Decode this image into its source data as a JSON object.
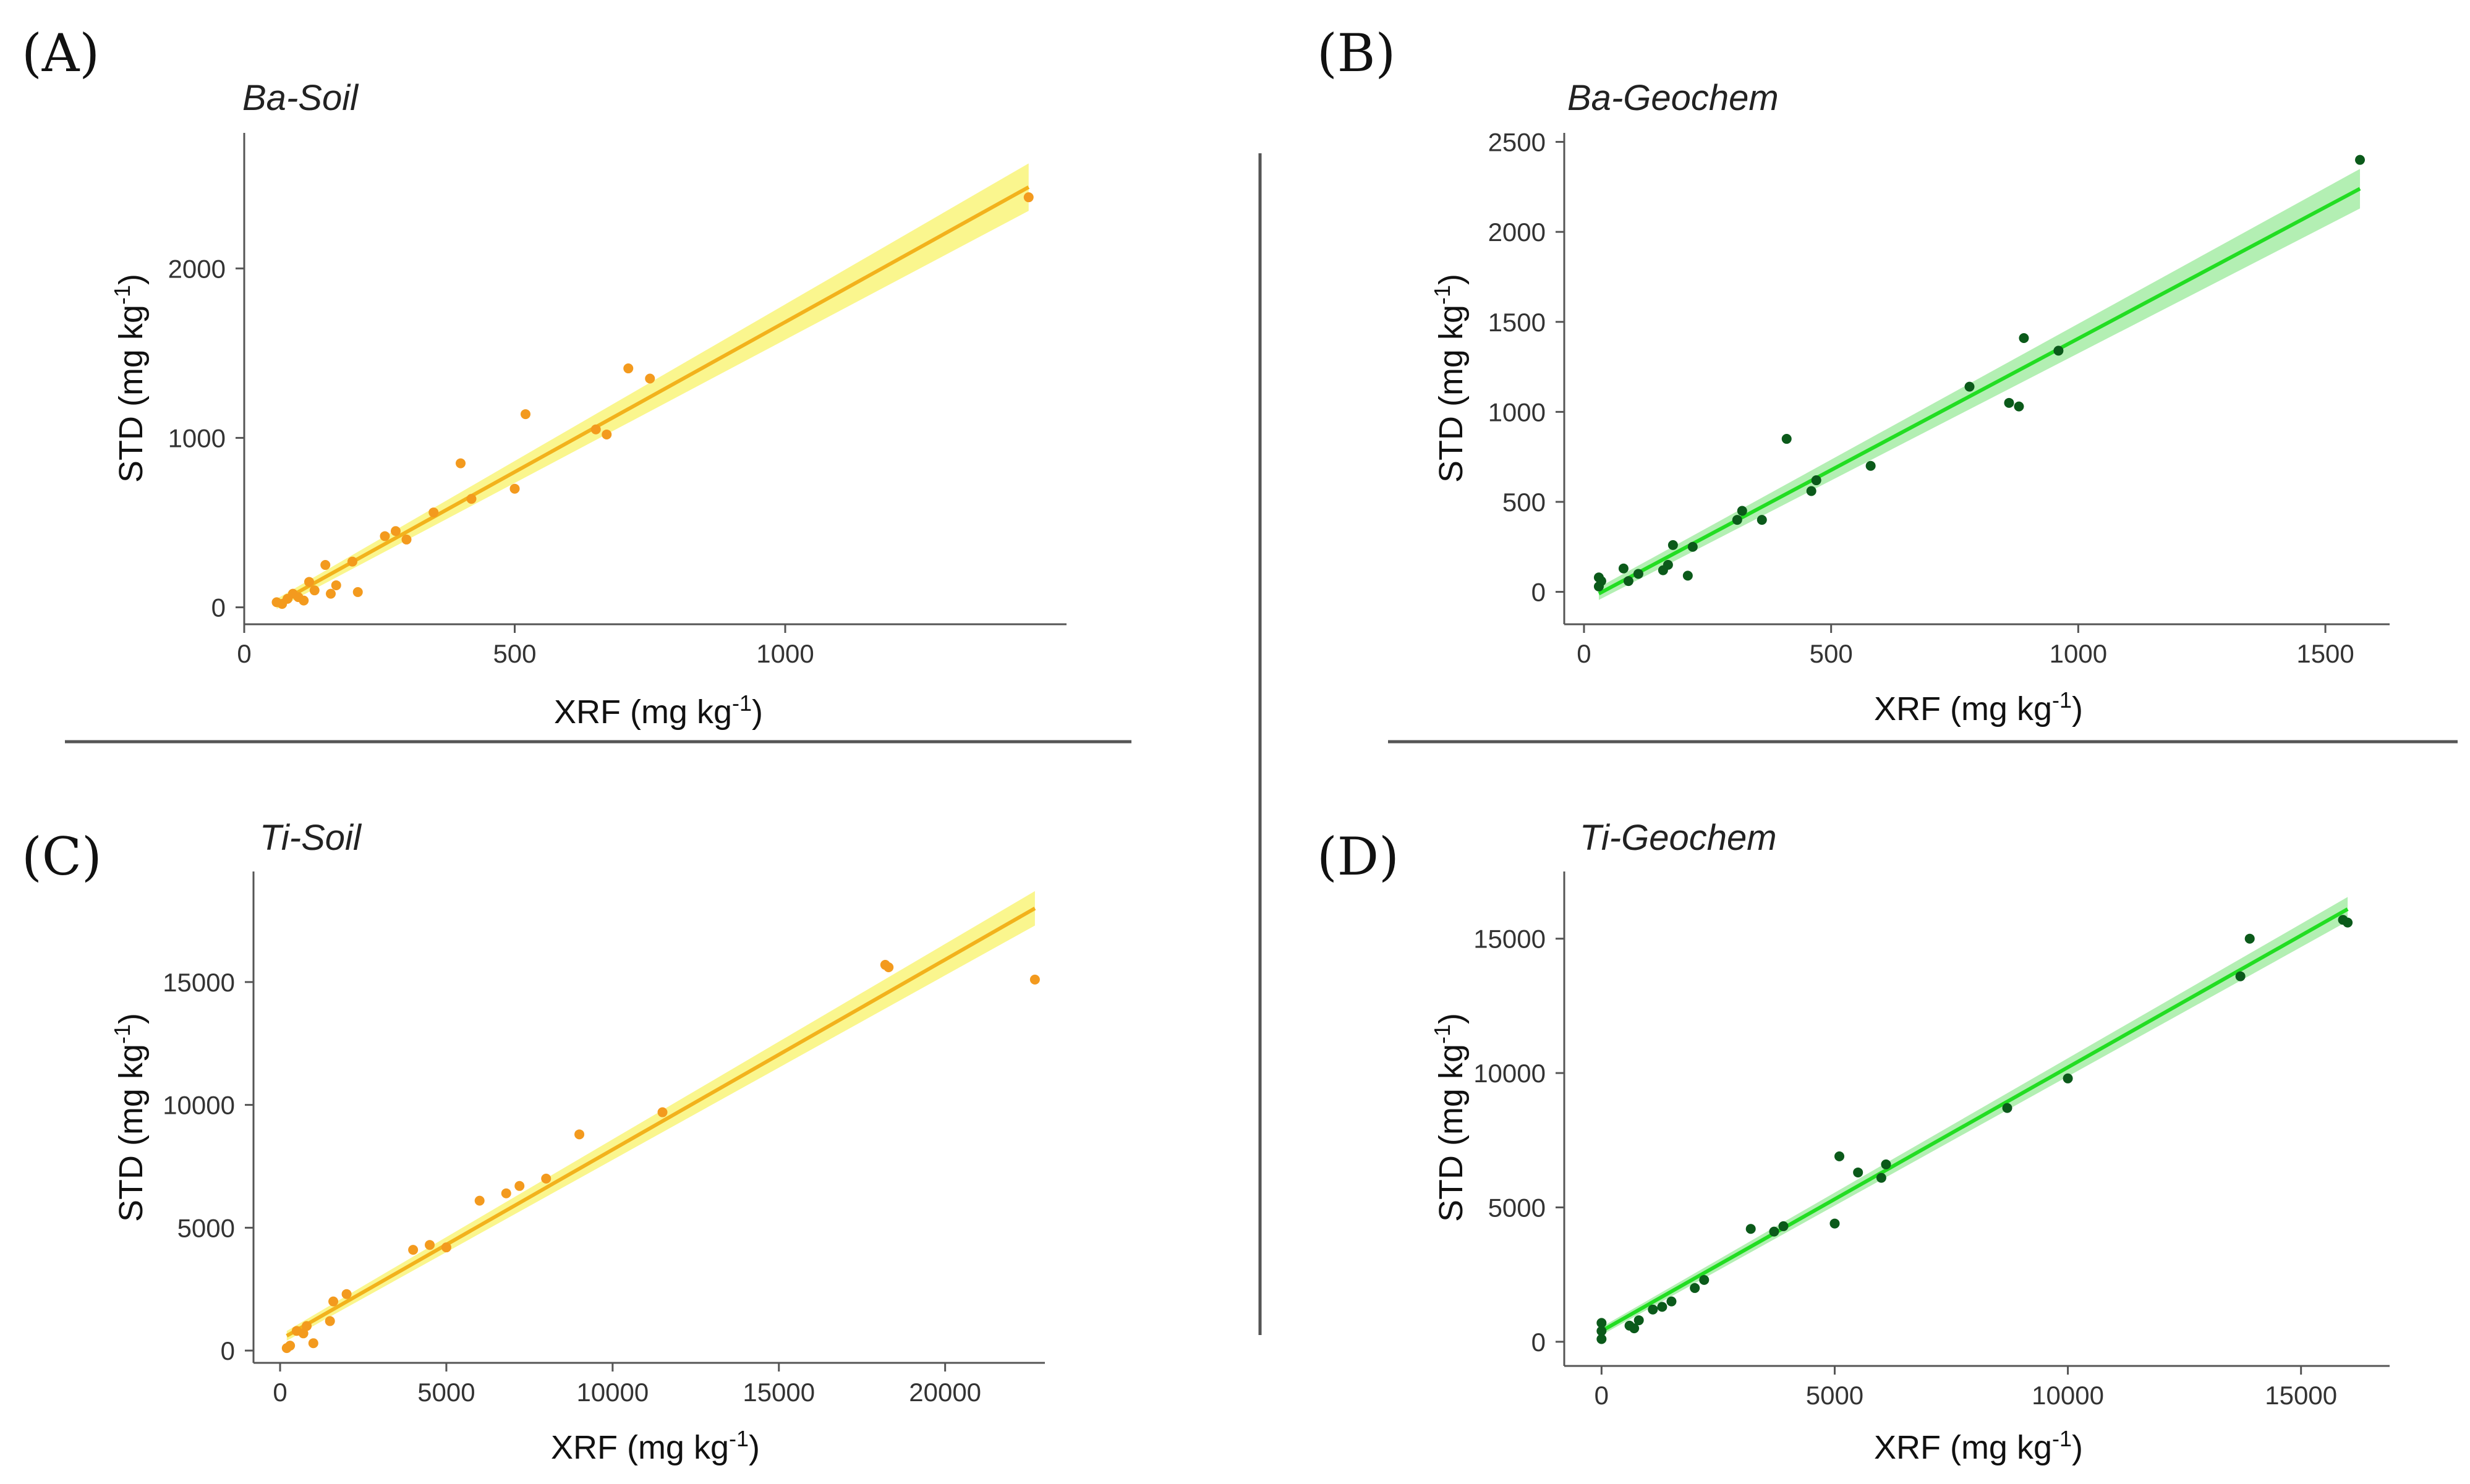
{
  "chart_data": [
    {
      "id": "A",
      "type": "scatter",
      "panel_label": "(A)",
      "title": "Ba-Soil",
      "xlabel": "XRF (mg kg",
      "xlabel_sup": "-1",
      "xlabel_tail": ")",
      "ylabel": "STD (mg kg",
      "ylabel_sup": "-1",
      "ylabel_tail": ")",
      "xlim": [
        0,
        1520
      ],
      "ylim": [
        -100,
        2800
      ],
      "xticks": [
        0,
        500,
        1000
      ],
      "yticks": [
        0,
        1000,
        2000
      ],
      "point_color": "#f39a1e",
      "line_color": "#f2b21c",
      "band_color": "#f9f57a",
      "fit": {
        "x": [
          60,
          1450
        ],
        "y": [
          20,
          2480
        ],
        "band_halfwidth": [
          30,
          140
        ]
      },
      "points": [
        [
          60,
          30
        ],
        [
          70,
          20
        ],
        [
          80,
          50
        ],
        [
          90,
          80
        ],
        [
          100,
          60
        ],
        [
          110,
          40
        ],
        [
          120,
          150
        ],
        [
          130,
          100
        ],
        [
          150,
          250
        ],
        [
          160,
          80
        ],
        [
          170,
          130
        ],
        [
          200,
          270
        ],
        [
          210,
          90
        ],
        [
          260,
          420
        ],
        [
          280,
          450
        ],
        [
          300,
          400
        ],
        [
          350,
          560
        ],
        [
          400,
          850
        ],
        [
          420,
          640
        ],
        [
          500,
          700
        ],
        [
          520,
          1140
        ],
        [
          650,
          1050
        ],
        [
          670,
          1020
        ],
        [
          710,
          1410
        ],
        [
          750,
          1350
        ],
        [
          1450,
          2420
        ]
      ]
    },
    {
      "id": "B",
      "type": "scatter",
      "panel_label": "(B)",
      "title": "Ba-Geochem",
      "xlabel": "XRF (mg kg",
      "xlabel_sup": "-1",
      "xlabel_tail": ")",
      "ylabel": "STD (mg kg",
      "ylabel_sup": "-1",
      "ylabel_tail": ")",
      "xlim": [
        -40,
        1630
      ],
      "ylim": [
        -180,
        2550
      ],
      "xticks": [
        0,
        500,
        1000,
        1500
      ],
      "yticks": [
        0,
        500,
        1000,
        1500,
        2000,
        2500
      ],
      "point_color": "#0b5a1a",
      "line_color": "#22dd22",
      "band_color": "#a6eca6",
      "fit": {
        "x": [
          30,
          1570
        ],
        "y": [
          -10,
          2240
        ],
        "band_halfwidth": [
          35,
          110
        ]
      },
      "points": [
        [
          30,
          80
        ],
        [
          30,
          30
        ],
        [
          35,
          60
        ],
        [
          80,
          130
        ],
        [
          90,
          60
        ],
        [
          110,
          100
        ],
        [
          160,
          120
        ],
        [
          170,
          150
        ],
        [
          180,
          260
        ],
        [
          210,
          90
        ],
        [
          220,
          250
        ],
        [
          310,
          400
        ],
        [
          320,
          450
        ],
        [
          360,
          400
        ],
        [
          410,
          850
        ],
        [
          460,
          560
        ],
        [
          470,
          620
        ],
        [
          580,
          700
        ],
        [
          780,
          1140
        ],
        [
          860,
          1050
        ],
        [
          880,
          1030
        ],
        [
          890,
          1410
        ],
        [
          960,
          1340
        ],
        [
          1570,
          2400
        ]
      ]
    },
    {
      "id": "C",
      "type": "scatter",
      "panel_label": "(C)",
      "title": "Ti-Soil",
      "xlabel": "XRF (mg kg",
      "xlabel_sup": "-1",
      "xlabel_tail": ")",
      "ylabel": "STD (mg kg",
      "ylabel_sup": "-1",
      "ylabel_tail": ")",
      "xlim": [
        -800,
        23000
      ],
      "ylim": [
        -500,
        19500
      ],
      "xticks": [
        0,
        5000,
        10000,
        15000,
        20000
      ],
      "yticks": [
        0,
        5000,
        10000,
        15000
      ],
      "point_color": "#f39a1e",
      "line_color": "#f2b21c",
      "band_color": "#f9f57a",
      "fit": {
        "x": [
          200,
          22700
        ],
        "y": [
          600,
          18000
        ],
        "band_halfwidth": [
          200,
          700
        ]
      },
      "points": [
        [
          200,
          100
        ],
        [
          300,
          200
        ],
        [
          500,
          800
        ],
        [
          700,
          700
        ],
        [
          800,
          1000
        ],
        [
          1000,
          300
        ],
        [
          1500,
          1200
        ],
        [
          1600,
          2000
        ],
        [
          2000,
          2300
        ],
        [
          4000,
          4100
        ],
        [
          4500,
          4300
        ],
        [
          5000,
          4200
        ],
        [
          6000,
          6100
        ],
        [
          6800,
          6400
        ],
        [
          7200,
          6700
        ],
        [
          8000,
          7000
        ],
        [
          9000,
          8800
        ],
        [
          11500,
          9700
        ],
        [
          18200,
          15700
        ],
        [
          18300,
          15600
        ],
        [
          22700,
          15100
        ]
      ]
    },
    {
      "id": "D",
      "type": "scatter",
      "panel_label": "(D)",
      "title": "Ti-Geochem",
      "xlabel": "XRF (mg kg",
      "xlabel_sup": "-1",
      "xlabel_tail": ")",
      "ylabel": "STD (mg kg",
      "ylabel_sup": "-1",
      "ylabel_tail": ")",
      "xlim": [
        -800,
        16900
      ],
      "ylim": [
        -900,
        17500
      ],
      "xticks": [
        0,
        5000,
        10000,
        15000
      ],
      "yticks": [
        0,
        5000,
        10000,
        15000
      ],
      "point_color": "#0b5a1a",
      "line_color": "#22dd22",
      "band_color": "#a6eca6",
      "fit": {
        "x": [
          0,
          16000
        ],
        "y": [
          400,
          16100
        ],
        "band_halfwidth": [
          150,
          450
        ]
      },
      "points": [
        [
          0,
          700
        ],
        [
          0,
          400
        ],
        [
          0,
          100
        ],
        [
          600,
          600
        ],
        [
          700,
          500
        ],
        [
          800,
          800
        ],
        [
          1100,
          1200
        ],
        [
          1300,
          1300
        ],
        [
          1500,
          1500
        ],
        [
          2000,
          2000
        ],
        [
          2200,
          2300
        ],
        [
          3200,
          4200
        ],
        [
          3700,
          4100
        ],
        [
          3900,
          4300
        ],
        [
          5000,
          4400
        ],
        [
          5100,
          6900
        ],
        [
          5500,
          6300
        ],
        [
          6000,
          6100
        ],
        [
          6100,
          6600
        ],
        [
          8700,
          8700
        ],
        [
          10000,
          9800
        ],
        [
          13700,
          13600
        ],
        [
          13900,
          15000
        ],
        [
          15900,
          15700
        ],
        [
          16000,
          15600
        ]
      ]
    }
  ]
}
